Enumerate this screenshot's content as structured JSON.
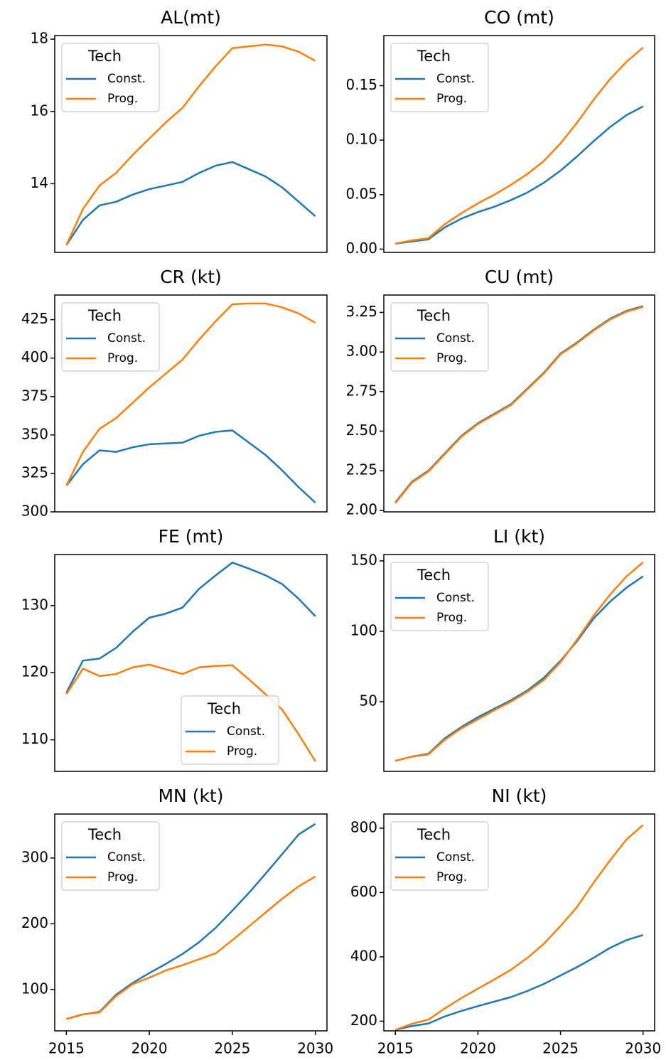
{
  "chart_data": [
    {
      "type": "line",
      "title": "AL(mt)",
      "legend_title": "Tech",
      "legend": "upper left",
      "x": [
        2015,
        2016,
        2017,
        2018,
        2019,
        2020,
        2021,
        2022,
        2023,
        2024,
        2025,
        2026,
        2027,
        2028,
        2029,
        2030
      ],
      "xlim": [
        2014.3,
        2030.7
      ],
      "ylim": [
        12.1,
        18.1
      ],
      "yticks": [
        14,
        16,
        18
      ],
      "series": [
        {
          "name": "Const.",
          "color": "#1f77b4",
          "values": [
            12.3,
            13.0,
            13.4,
            13.5,
            13.7,
            13.85,
            13.95,
            14.05,
            14.3,
            14.5,
            14.6,
            14.4,
            14.2,
            13.9,
            13.5,
            13.1
          ]
        },
        {
          "name": "Prog.",
          "color": "#ff7f0e",
          "values": [
            12.3,
            13.3,
            13.95,
            14.3,
            14.8,
            15.25,
            15.7,
            16.1,
            16.7,
            17.25,
            17.75,
            17.8,
            17.85,
            17.8,
            17.65,
            17.4
          ]
        }
      ]
    },
    {
      "type": "line",
      "title": "CO (mt)",
      "legend_title": "Tech",
      "legend": "upper left",
      "x": [
        2015,
        2016,
        2017,
        2018,
        2019,
        2020,
        2021,
        2022,
        2023,
        2024,
        2025,
        2026,
        2027,
        2028,
        2029,
        2030
      ],
      "xlim": [
        2014.3,
        2030.7
      ],
      "ylim": [
        -0.003,
        0.196
      ],
      "yticks": [
        {
          "value": 0,
          "label": "0.00"
        },
        {
          "value": 0.05,
          "label": "0.05"
        },
        {
          "value": 0.1,
          "label": "0.10"
        },
        {
          "value": 0.15,
          "label": "0.15"
        }
      ],
      "series": [
        {
          "name": "Const.",
          "color": "#1f77b4",
          "values": [
            0.005,
            0.007,
            0.009,
            0.02,
            0.028,
            0.034,
            0.039,
            0.045,
            0.052,
            0.061,
            0.072,
            0.085,
            0.099,
            0.112,
            0.123,
            0.131
          ]
        },
        {
          "name": "Prog.",
          "color": "#ff7f0e",
          "values": [
            0.005,
            0.008,
            0.01,
            0.023,
            0.033,
            0.042,
            0.05,
            0.059,
            0.069,
            0.081,
            0.097,
            0.116,
            0.137,
            0.156,
            0.172,
            0.185
          ]
        }
      ]
    },
    {
      "type": "line",
      "title": "CR (kt)",
      "legend_title": "Tech",
      "legend": "upper left",
      "x": [
        2015,
        2016,
        2017,
        2018,
        2019,
        2020,
        2021,
        2022,
        2023,
        2024,
        2025,
        2026,
        2027,
        2028,
        2029,
        2030
      ],
      "xlim": [
        2014.3,
        2030.7
      ],
      "ylim": [
        300,
        441
      ],
      "yticks": [
        300,
        325,
        350,
        375,
        400,
        425
      ],
      "series": [
        {
          "name": "Const.",
          "color": "#1f77b4",
          "values": [
            317,
            331,
            340,
            339,
            342,
            344,
            344.5,
            345,
            349.5,
            352,
            353,
            345,
            337,
            327,
            316,
            306
          ]
        },
        {
          "name": "Prog.",
          "color": "#ff7f0e",
          "values": [
            317,
            339,
            354,
            361,
            371,
            381,
            390,
            399,
            412,
            424,
            435,
            435.5,
            435.5,
            433,
            429,
            423
          ]
        }
      ]
    },
    {
      "type": "line",
      "title": "CU (mt)",
      "legend_title": "Tech",
      "legend": "upper left",
      "x": [
        2015,
        2016,
        2017,
        2018,
        2019,
        2020,
        2021,
        2022,
        2023,
        2024,
        2025,
        2026,
        2027,
        2028,
        2029,
        2030
      ],
      "xlim": [
        2014.3,
        2030.7
      ],
      "ylim": [
        1.99,
        3.36
      ],
      "yticks": [
        {
          "value": 2,
          "label": "2.00"
        },
        {
          "value": 2.25,
          "label": "2.25"
        },
        {
          "value": 2.5,
          "label": "2.50"
        },
        {
          "value": 2.75,
          "label": "2.75"
        },
        {
          "value": 3,
          "label": "3.00"
        },
        {
          "value": 3.25,
          "label": "3.25"
        }
      ],
      "series": [
        {
          "name": "Const.",
          "color": "#1f77b4",
          "values": [
            2.05,
            2.18,
            2.25,
            2.36,
            2.47,
            2.55,
            2.61,
            2.67,
            2.77,
            2.87,
            2.99,
            3.06,
            3.14,
            3.21,
            3.26,
            3.29
          ]
        },
        {
          "name": "Prog.",
          "color": "#ff7f0e",
          "values": [
            2.045,
            2.175,
            2.245,
            2.355,
            2.465,
            2.545,
            2.605,
            2.665,
            2.765,
            2.865,
            2.985,
            3.055,
            3.135,
            3.205,
            3.255,
            3.285
          ]
        }
      ]
    },
    {
      "type": "line",
      "title": "FE (mt)",
      "legend_title": "Tech",
      "legend": "lower center",
      "x": [
        2015,
        2016,
        2017,
        2018,
        2019,
        2020,
        2021,
        2022,
        2023,
        2024,
        2025,
        2026,
        2027,
        2028,
        2029,
        2030
      ],
      "xlim": [
        2014.3,
        2030.7
      ],
      "ylim": [
        105.3,
        137.6
      ],
      "yticks": [
        110,
        120,
        130
      ],
      "series": [
        {
          "name": "Const.",
          "color": "#1f77b4",
          "values": [
            117,
            121.8,
            122.1,
            123.7,
            126.1,
            128.2,
            128.8,
            129.7,
            132.5,
            134.5,
            136.4,
            135.5,
            134.5,
            133.2,
            131,
            128.4
          ]
        },
        {
          "name": "Prog.",
          "color": "#ff7f0e",
          "values": [
            116.8,
            120.6,
            119.5,
            119.8,
            120.8,
            121.2,
            120.5,
            119.8,
            120.8,
            121,
            121.1,
            119,
            116.8,
            114.5,
            110.8,
            106.8
          ]
        }
      ]
    },
    {
      "type": "line",
      "title": "LI (kt)",
      "legend_title": "Tech",
      "legend": "upper left",
      "x": [
        2015,
        2016,
        2017,
        2018,
        2019,
        2020,
        2021,
        2022,
        2023,
        2024,
        2025,
        2026,
        2027,
        2028,
        2029,
        2030
      ],
      "xlim": [
        2014.3,
        2030.7
      ],
      "ylim": [
        0.5,
        154.5
      ],
      "yticks": [
        50,
        100,
        150
      ],
      "series": [
        {
          "name": "Const.",
          "color": "#1f77b4",
          "values": [
            8,
            11,
            13,
            24,
            32,
            39,
            45,
            51,
            58,
            67,
            79,
            93,
            109,
            121,
            131,
            139
          ]
        },
        {
          "name": "Prog.",
          "color": "#ff7f0e",
          "values": [
            8,
            11,
            12.5,
            23,
            31,
            37.5,
            44,
            50,
            57,
            65.5,
            78,
            94,
            111,
            126,
            139,
            149
          ]
        }
      ]
    },
    {
      "type": "line",
      "title": "MN (kt)",
      "legend_title": "Tech",
      "legend": "upper left",
      "x": [
        2015,
        2016,
        2017,
        2018,
        2019,
        2020,
        2021,
        2022,
        2023,
        2024,
        2025,
        2026,
        2027,
        2028,
        2029,
        2030
      ],
      "xlim": [
        2014.3,
        2030.7
      ],
      "xticks": [
        2015,
        2020,
        2025,
        2030
      ],
      "ylim": [
        37,
        367
      ],
      "yticks": [
        100,
        200,
        300
      ],
      "series": [
        {
          "name": "Const.",
          "color": "#1f77b4",
          "values": [
            55,
            62,
            66,
            92,
            110,
            125,
            139,
            154,
            172,
            194,
            220,
            247,
            276,
            306,
            336,
            352
          ]
        },
        {
          "name": "Prog.",
          "color": "#ff7f0e",
          "values": [
            55,
            62,
            65,
            90,
            108,
            118,
            129,
            137,
            146,
            155,
            175,
            196,
            217,
            238,
            257,
            272
          ]
        }
      ]
    },
    {
      "type": "line",
      "title": "NI (kt)",
      "legend_title": "Tech",
      "legend": "upper left",
      "x": [
        2015,
        2016,
        2017,
        2018,
        2019,
        2020,
        2021,
        2022,
        2023,
        2024,
        2025,
        2026,
        2027,
        2028,
        2029,
        2030
      ],
      "xlim": [
        2014.3,
        2030.7
      ],
      "xticks": [
        2015,
        2020,
        2025,
        2030
      ],
      "ylim": [
        170,
        844
      ],
      "yticks": [
        200,
        400,
        600,
        800
      ],
      "series": [
        {
          "name": "Const.",
          "color": "#1f77b4",
          "values": [
            173,
            185,
            193,
            215,
            232,
            247,
            261,
            275,
            294,
            316,
            342,
            368,
            397,
            428,
            452,
            468
          ]
        },
        {
          "name": "Prog.",
          "color": "#ff7f0e",
          "values": [
            173,
            192,
            205,
            240,
            272,
            301,
            330,
            360,
            397,
            441,
            496,
            555,
            630,
            700,
            765,
            810
          ]
        }
      ]
    }
  ]
}
